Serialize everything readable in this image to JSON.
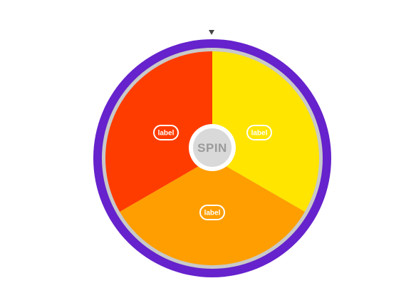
{
  "wheel": {
    "spin_label": "SPIN",
    "segments": [
      {
        "label": "label",
        "color": "#FFE500"
      },
      {
        "label": "label",
        "color": "#FF9E00"
      },
      {
        "label": "label",
        "color": "#FF3C00"
      }
    ],
    "rim_color": "#6622CC",
    "inner_rim_color": "#C9C9C9",
    "hub_color": "#D9D9D9",
    "pointer_icon": "triangle-down-icon"
  }
}
